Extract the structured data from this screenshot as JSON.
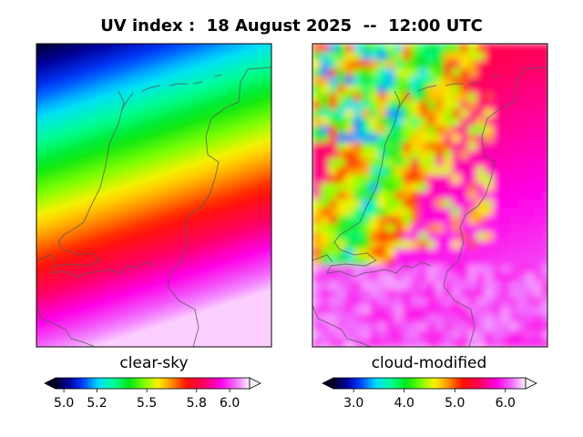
{
  "chart_data": {
    "type": "heatmap",
    "title": "UV index :  18 August 2025  --  12:00 UTC",
    "panels": [
      {
        "name": "clear-sky",
        "label": "clear-sky",
        "colorbar": {
          "vmin": 4.95,
          "vmax": 6.12,
          "ticks": [
            5.0,
            5.2,
            5.5,
            5.8,
            6.0
          ],
          "tick_labels": [
            "5.0",
            "5.2",
            "5.5",
            "5.8",
            "6.0"
          ],
          "extend": "both"
        },
        "field_summary": "uniform smooth north-south gradient: ~4.95 at top-left increasing to ~6.1 at bottom"
      },
      {
        "name": "cloud-modified",
        "label": "cloud-modified",
        "colorbar": {
          "vmin": 2.6,
          "vmax": 6.4,
          "ticks": [
            3.0,
            4.0,
            5.0,
            6.0
          ],
          "tick_labels": [
            "3.0",
            "4.0",
            "5.0",
            "6.0"
          ],
          "extend": "both"
        },
        "field_summary": "cloud band reduces UV in the northwest (~3-4.5), clear east and south (~5-6.2)"
      }
    ],
    "colormap": "gist_ncar-like: black, navy, blue, cyan, green, yellow, red, magenta, white",
    "map_region": "Netherlands with surrounding Belgium/Germany borders"
  }
}
